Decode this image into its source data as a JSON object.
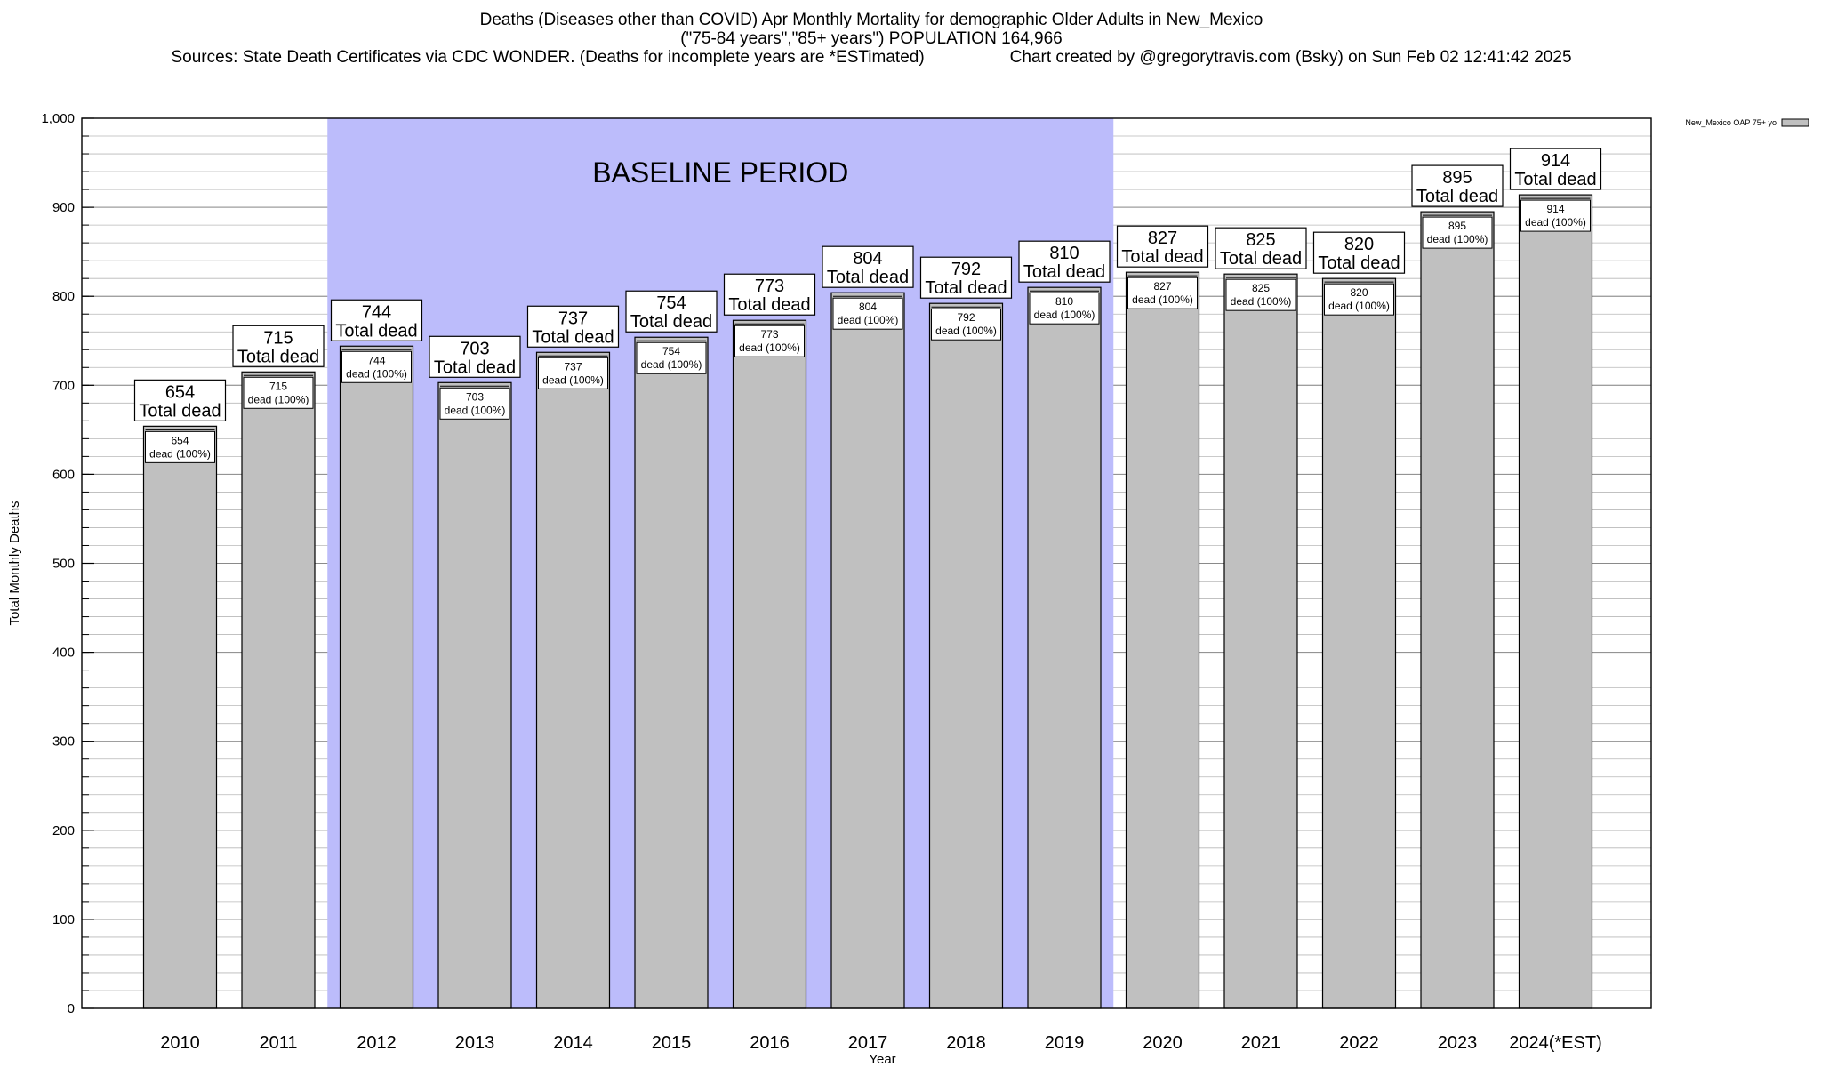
{
  "header": {
    "title": "Deaths (Diseases other than COVID) Apr Monthly Mortality for demographic Older Adults in New_Mexico",
    "subtitle": "(\"75-84 years\",\"85+ years\") POPULATION 164,966",
    "sources": "Sources: State Death Certificates via CDC WONDER. (Deaths for incomplete years are *ESTimated)",
    "credit": "Chart created by @gregorytravis.com (Bsky) on Sun Feb 02 12:41:42 2025"
  },
  "chart_data": {
    "type": "bar",
    "xlabel": "Year",
    "ylabel": "Total Monthly Deaths",
    "ylim": [
      0,
      1000
    ],
    "yticks": [
      0,
      100,
      200,
      300,
      400,
      500,
      600,
      700,
      800,
      900,
      1000
    ],
    "ytick_labels": [
      "0",
      "100",
      "200",
      "300",
      "400",
      "500",
      "600",
      "700",
      "800",
      "900",
      "1,000"
    ],
    "minor_tick_step": 20,
    "grid": true,
    "categories": [
      "2010",
      "2011",
      "2012",
      "2013",
      "2014",
      "2015",
      "2016",
      "2017",
      "2018",
      "2019",
      "2020",
      "2021",
      "2022",
      "2023",
      "2024(*EST)"
    ],
    "series": [
      {
        "name": "New_Mexico OAP 75+ yo",
        "color": "#c0c0c0",
        "values": [
          654,
          715,
          744,
          703,
          737,
          754,
          773,
          804,
          792,
          810,
          827,
          825,
          820,
          895,
          914
        ]
      }
    ],
    "bar_label_top": "Total dead",
    "bar_label_inner": "dead (100%)",
    "shaded_region": {
      "label": "BASELINE PERIOD",
      "from": "2012",
      "to": "2019",
      "color": "#bcbcfb"
    },
    "legend": {
      "position": "top-right",
      "entries": [
        "New_Mexico OAP 75+ yo"
      ]
    }
  }
}
